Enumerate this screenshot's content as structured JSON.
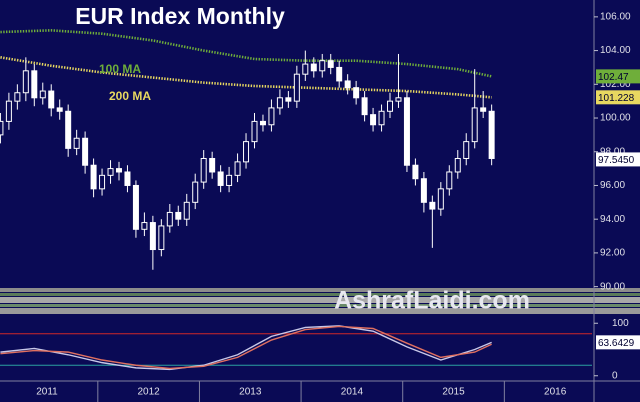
{
  "chart_data": [
    {
      "type": "candlestick",
      "title": "EUR Index Monthly",
      "watermark": "AshrafLaidi.com",
      "x": [
        0,
        1,
        2,
        3,
        4,
        5,
        6,
        7,
        8,
        9,
        10,
        11,
        12,
        13,
        14,
        15,
        16,
        17,
        18,
        19,
        20,
        21,
        22,
        23,
        24,
        25,
        26,
        27,
        28,
        29,
        30,
        31,
        32,
        33,
        34,
        35,
        36,
        37,
        38,
        39,
        40,
        41,
        42,
        43,
        44,
        45,
        46,
        47,
        48,
        49,
        50,
        51,
        52,
        53,
        54,
        55,
        56,
        57,
        58
      ],
      "open": [
        99.0,
        99.8,
        101.0,
        101.5,
        102.8,
        101.2,
        101.6,
        100.6,
        100.4,
        98.2,
        98.8,
        97.2,
        95.8,
        96.6,
        97.0,
        96.8,
        96.0,
        93.4,
        93.8,
        92.2,
        93.6,
        94.4,
        94.0,
        95.0,
        96.2,
        97.6,
        96.8,
        96.0,
        96.6,
        97.4,
        98.6,
        99.8,
        99.6,
        100.6,
        101.2,
        101.0,
        102.6,
        103.2,
        102.8,
        103.4,
        103.0,
        102.2,
        101.8,
        101.2,
        100.2,
        99.6,
        100.4,
        101.0,
        101.2,
        97.2,
        96.4,
        95.0,
        94.6,
        95.8,
        96.8,
        97.6,
        98.6,
        100.6,
        100.4
      ],
      "high": [
        100.3,
        101.5,
        102.0,
        103.6,
        103.2,
        102.1,
        102.0,
        101.1,
        100.8,
        99.3,
        99.2,
        97.6,
        97.0,
        97.5,
        97.4,
        97.2,
        96.3,
        94.4,
        94.2,
        94.0,
        94.9,
        94.8,
        95.5,
        96.7,
        98.1,
        98.0,
        97.2,
        97.1,
        97.9,
        99.1,
        100.3,
        100.2,
        101.1,
        101.7,
        101.6,
        103.1,
        104.0,
        103.6,
        103.8,
        103.8,
        103.4,
        102.6,
        102.2,
        101.6,
        100.6,
        100.8,
        101.5,
        103.8,
        101.6,
        97.6,
        96.8,
        95.4,
        96.2,
        97.2,
        98.1,
        99.1,
        102.9,
        101.6,
        100.8
      ],
      "low": [
        98.5,
        99.3,
        100.5,
        101.0,
        100.7,
        100.8,
        100.1,
        99.9,
        97.7,
        97.8,
        96.7,
        95.3,
        95.4,
        96.1,
        96.3,
        95.6,
        92.9,
        93.0,
        91.0,
        91.8,
        93.2,
        93.6,
        93.6,
        94.6,
        95.8,
        96.4,
        95.6,
        95.6,
        96.2,
        97.0,
        98.2,
        99.2,
        99.2,
        100.2,
        100.6,
        100.6,
        102.2,
        102.4,
        102.4,
        102.6,
        101.8,
        101.4,
        100.8,
        99.8,
        99.2,
        99.2,
        100.0,
        100.6,
        96.8,
        96.0,
        94.4,
        92.3,
        94.2,
        95.4,
        96.4,
        97.2,
        98.2,
        100.0,
        97.2
      ],
      "close": [
        99.8,
        101.0,
        101.5,
        102.8,
        101.2,
        101.6,
        100.6,
        100.4,
        98.2,
        98.8,
        97.2,
        95.8,
        96.6,
        97.0,
        96.8,
        96.0,
        93.4,
        93.8,
        92.2,
        93.6,
        94.4,
        94.0,
        95.0,
        96.2,
        97.6,
        96.8,
        96.0,
        96.6,
        97.4,
        98.6,
        99.8,
        99.6,
        100.6,
        101.2,
        101.0,
        102.6,
        103.2,
        102.8,
        103.4,
        103.0,
        102.2,
        101.8,
        101.2,
        100.2,
        99.6,
        100.4,
        101.0,
        101.2,
        97.2,
        96.4,
        95.0,
        94.6,
        95.8,
        96.8,
        97.6,
        98.6,
        100.6,
        100.4,
        97.6
      ],
      "last_price": {
        "value": 97.545,
        "label": "97.5450"
      },
      "series": [
        {
          "name": "100 MA",
          "color": "#6fae3a",
          "x": [
            0,
            6,
            12,
            18,
            24,
            30,
            36,
            42,
            48,
            54,
            58
          ],
          "values": [
            105.1,
            105.2,
            105.0,
            104.6,
            104.0,
            103.5,
            103.4,
            103.4,
            103.2,
            102.9,
            102.47
          ],
          "end_label": "102.47"
        },
        {
          "name": "200 MA",
          "color": "#e8d860",
          "x": [
            0,
            6,
            12,
            18,
            24,
            30,
            36,
            42,
            48,
            54,
            58
          ],
          "values": [
            103.6,
            103.1,
            102.7,
            102.4,
            102.1,
            101.9,
            101.8,
            101.7,
            101.6,
            101.4,
            101.228
          ],
          "end_label": "101.228"
        }
      ],
      "xlim": [
        -0.05,
        69.85
      ],
      "ylim": [
        89.8,
        107
      ],
      "yticks": [
        {
          "value": 90,
          "label": "90.00"
        },
        {
          "value": 92,
          "label": "92.00"
        },
        {
          "value": 94,
          "label": "94.00"
        },
        {
          "value": 96,
          "label": "96.00"
        },
        {
          "value": 98,
          "label": "98.00"
        },
        {
          "value": 100,
          "label": "100.00"
        },
        {
          "value": 102,
          "label": "102.00"
        },
        {
          "value": 104,
          "label": "104.00"
        },
        {
          "value": 106,
          "label": "106.00"
        }
      ],
      "xticks": [
        {
          "value": 5.5,
          "label": "2011"
        },
        {
          "value": 17.5,
          "label": "2012"
        },
        {
          "value": 29.5,
          "label": "2013"
        },
        {
          "value": 41.5,
          "label": "2014"
        },
        {
          "value": 53.5,
          "label": "2015"
        },
        {
          "value": 65.5,
          "label": "2016"
        }
      ]
    },
    {
      "type": "line",
      "xlim": [
        -0.05,
        69.85
      ],
      "ylim": [
        -10,
        110
      ],
      "yticks": [
        0,
        100
      ],
      "levels": [
        {
          "value": 80,
          "color": "#d02828"
        },
        {
          "value": 20,
          "color": "#2aa0a0"
        }
      ],
      "series": [
        {
          "color": "#c8c8e8",
          "x": [
            0,
            4,
            8,
            12,
            16,
            20,
            24,
            28,
            32,
            36,
            40,
            44,
            48,
            52,
            56,
            58
          ],
          "values": [
            45,
            52,
            40,
            25,
            15,
            12,
            20,
            40,
            75,
            92,
            95,
            85,
            55,
            30,
            50,
            63.6429
          ],
          "end_label": "63.6429"
        },
        {
          "color": "#e07060",
          "x": [
            0,
            4,
            8,
            12,
            16,
            20,
            24,
            28,
            32,
            36,
            40,
            44,
            48,
            52,
            56,
            58
          ],
          "values": [
            42,
            48,
            45,
            30,
            20,
            14,
            18,
            35,
            68,
            88,
            94,
            90,
            62,
            35,
            45,
            60
          ]
        }
      ]
    }
  ]
}
